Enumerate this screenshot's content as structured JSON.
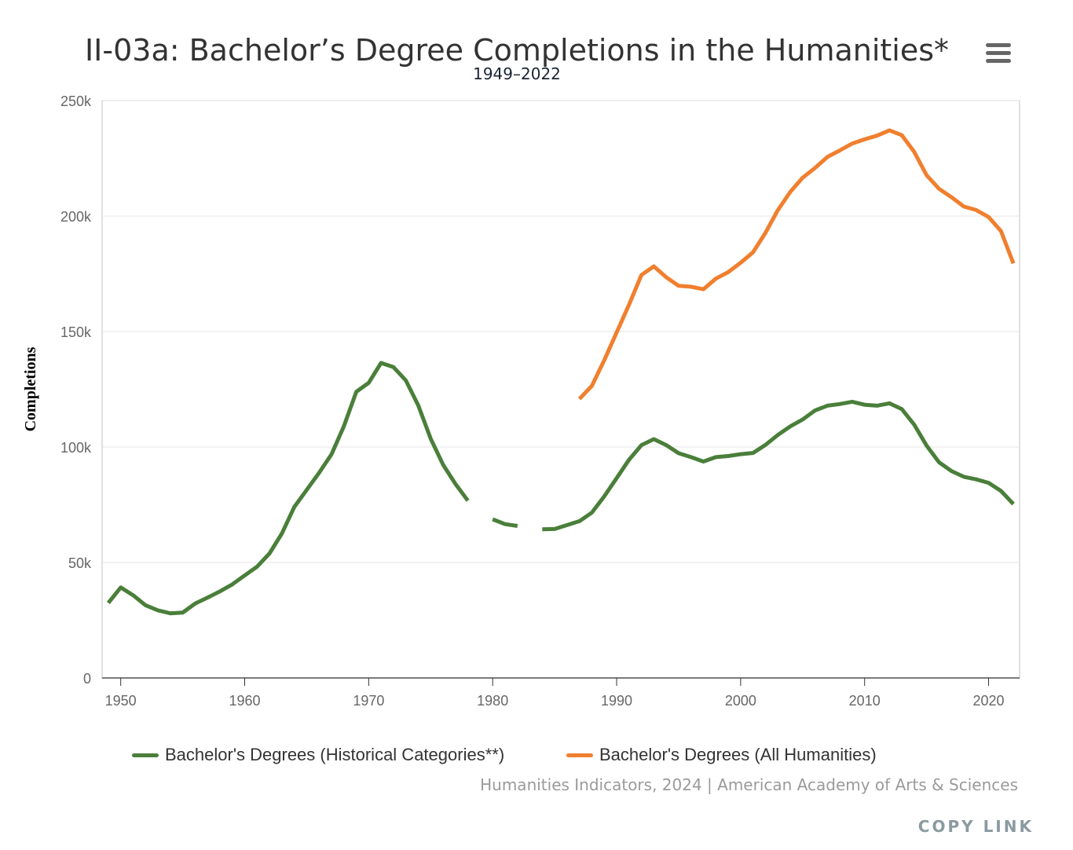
{
  "title": "II-03a: Bachelor’s Degree Completions in the Humanities*",
  "subtitle": "1949–2022",
  "menu_icon": "hamburger-menu-icon",
  "credits": "Humanities Indicators, 2024 | American Academy of Arts & Sciences",
  "copy_link": "COPY LINK",
  "chart_data": {
    "type": "line",
    "ylabel": "Completions",
    "xlabel": "",
    "xlim": [
      1948.5,
      2022.5
    ],
    "ylim": [
      0,
      250000
    ],
    "x_ticks": [
      1950,
      1960,
      1970,
      1980,
      1990,
      2000,
      2010,
      2020
    ],
    "y_ticks": [
      0,
      50000,
      100000,
      150000,
      200000,
      250000
    ],
    "y_tick_labels": [
      "0",
      "50k",
      "100k",
      "150k",
      "200k",
      "250k"
    ],
    "grid": true,
    "legend_position": "bottom",
    "series": [
      {
        "name": "Bachelor's Degrees (Historical Categories**)",
        "color": "#4a7f3a",
        "points": [
          [
            1949,
            32500
          ],
          [
            1950,
            39200
          ],
          [
            1951,
            35800
          ],
          [
            1952,
            31500
          ],
          [
            1953,
            29300
          ],
          [
            1954,
            28000
          ],
          [
            1955,
            28300
          ],
          [
            1956,
            32200
          ],
          [
            1957,
            34800
          ],
          [
            1958,
            37500
          ],
          [
            1959,
            40500
          ],
          [
            1960,
            44400
          ],
          [
            1961,
            48200
          ],
          [
            1962,
            53900
          ],
          [
            1963,
            62600
          ],
          [
            1964,
            74000
          ],
          [
            1965,
            81400
          ],
          [
            1966,
            88800
          ],
          [
            1967,
            96800
          ],
          [
            1968,
            109000
          ],
          [
            1969,
            123900
          ],
          [
            1970,
            127800
          ],
          [
            1971,
            136400
          ],
          [
            1972,
            134600
          ],
          [
            1973,
            128800
          ],
          [
            1974,
            118000
          ],
          [
            1975,
            103600
          ],
          [
            1976,
            92300
          ],
          [
            1977,
            84000
          ],
          [
            1978,
            76800
          ],
          null,
          [
            1980,
            68700
          ],
          [
            1981,
            66600
          ],
          [
            1982,
            65800
          ],
          null,
          [
            1984,
            64400
          ],
          [
            1985,
            64500
          ],
          [
            1986,
            66200
          ],
          [
            1987,
            67900
          ],
          [
            1988,
            71600
          ],
          [
            1989,
            78600
          ],
          [
            1990,
            86500
          ],
          [
            1991,
            94500
          ],
          [
            1992,
            100800
          ],
          [
            1993,
            103400
          ],
          [
            1994,
            100800
          ],
          [
            1995,
            97300
          ],
          [
            1996,
            95600
          ],
          [
            1997,
            93700
          ],
          [
            1998,
            95600
          ],
          [
            1999,
            96100
          ],
          [
            2000,
            96900
          ],
          [
            2001,
            97400
          ],
          [
            2002,
            100900
          ],
          [
            2003,
            105200
          ],
          [
            2004,
            108900
          ],
          [
            2005,
            111900
          ],
          [
            2006,
            115800
          ],
          [
            2007,
            117900
          ],
          [
            2008,
            118600
          ],
          [
            2009,
            119600
          ],
          [
            2010,
            118300
          ],
          [
            2011,
            117900
          ],
          [
            2012,
            118900
          ],
          [
            2013,
            116400
          ],
          [
            2014,
            109700
          ],
          [
            2015,
            100600
          ],
          [
            2016,
            93400
          ],
          [
            2017,
            89600
          ],
          [
            2018,
            87100
          ],
          [
            2019,
            86000
          ],
          [
            2020,
            84500
          ],
          [
            2021,
            81000
          ],
          [
            2022,
            75300
          ]
        ]
      },
      {
        "name": "Bachelor's Degrees (All Humanities)",
        "color": "#f07f2e",
        "points": [
          [
            1987,
            120800
          ],
          [
            1988,
            126500
          ],
          [
            1989,
            137500
          ],
          [
            1990,
            149600
          ],
          [
            1991,
            161600
          ],
          [
            1992,
            174500
          ],
          [
            1993,
            178200
          ],
          [
            1994,
            173500
          ],
          [
            1995,
            169800
          ],
          [
            1996,
            169400
          ],
          [
            1997,
            168300
          ],
          [
            1998,
            172900
          ],
          [
            1999,
            175700
          ],
          [
            2000,
            179800
          ],
          [
            2001,
            184300
          ],
          [
            2002,
            192700
          ],
          [
            2003,
            202500
          ],
          [
            2004,
            210400
          ],
          [
            2005,
            216600
          ],
          [
            2006,
            220800
          ],
          [
            2007,
            225600
          ],
          [
            2008,
            228400
          ],
          [
            2009,
            231400
          ],
          [
            2010,
            233200
          ],
          [
            2011,
            234800
          ],
          [
            2012,
            237100
          ],
          [
            2013,
            235000
          ],
          [
            2014,
            227800
          ],
          [
            2015,
            217700
          ],
          [
            2016,
            211800
          ],
          [
            2017,
            208200
          ],
          [
            2018,
            204100
          ],
          [
            2019,
            202600
          ],
          [
            2020,
            199600
          ],
          [
            2021,
            193500
          ],
          [
            2022,
            179500
          ]
        ]
      }
    ]
  }
}
